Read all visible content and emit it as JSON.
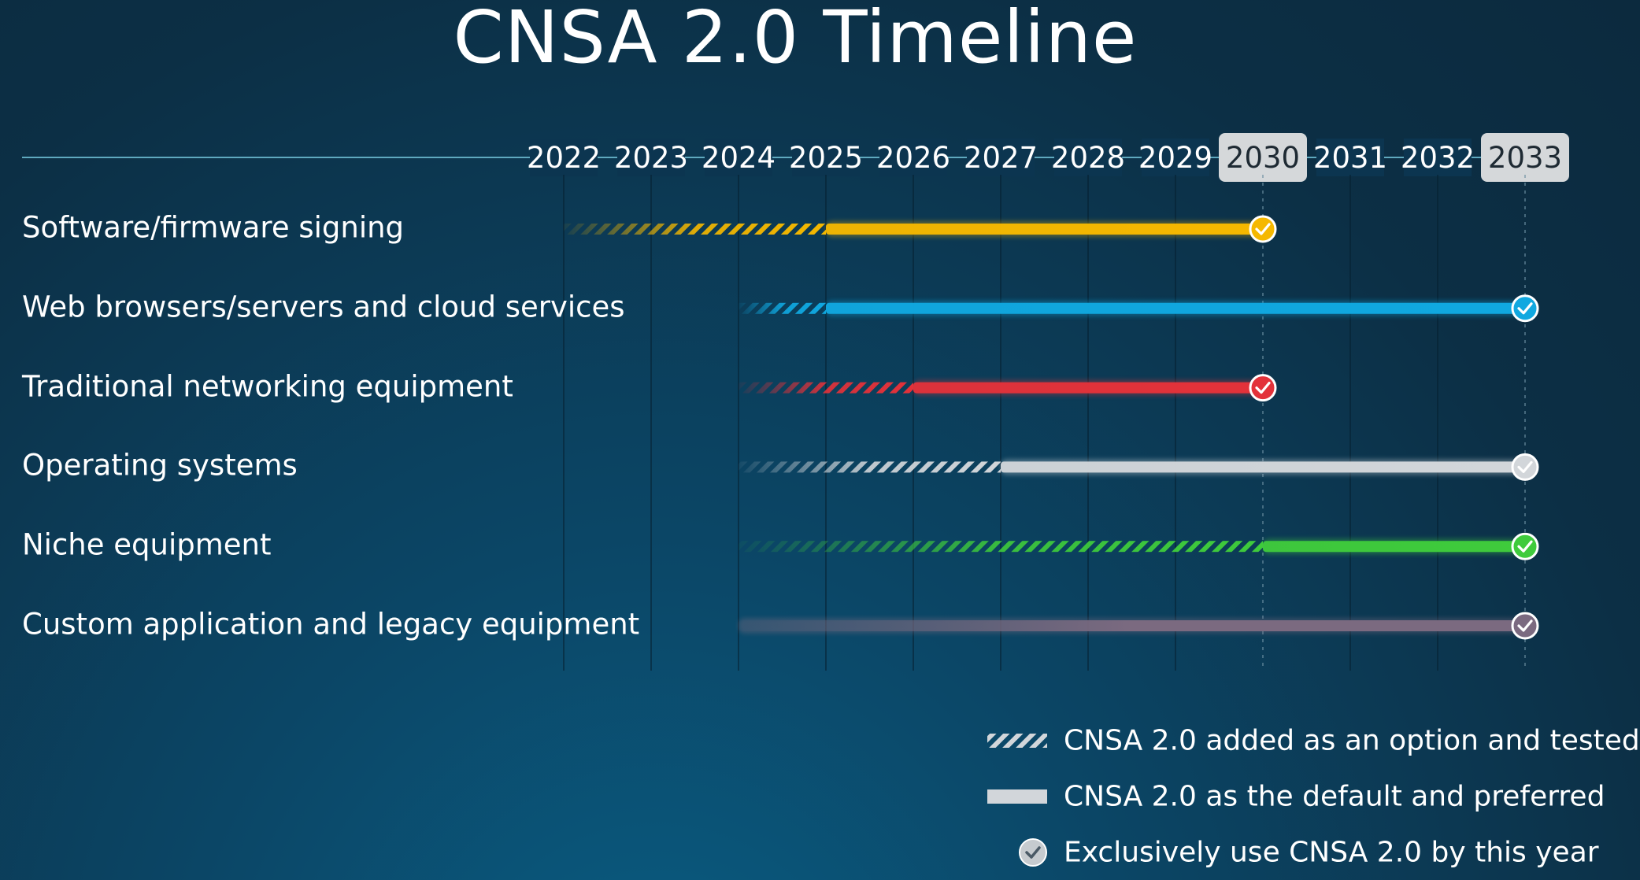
{
  "chart_data": {
    "type": "timeline",
    "title": "CNSA 2.0 Timeline",
    "years": [
      "2022",
      "2023",
      "2024",
      "2025",
      "2026",
      "2027",
      "2028",
      "2029",
      "2030",
      "2031",
      "2032",
      "2033"
    ],
    "highlighted_years": [
      "2030",
      "2033"
    ],
    "categories": [
      {
        "label": "Software/firmware signing",
        "color": "#f5b800",
        "tested_start": 2022,
        "default_start": 2025,
        "exclusive_by": 2030
      },
      {
        "label": "Web browsers/servers and cloud services",
        "color": "#10a8e0",
        "tested_start": 2024,
        "default_start": 2025,
        "exclusive_by": 2033
      },
      {
        "label": "Traditional networking equipment",
        "color": "#e3323a",
        "tested_start": 2024,
        "default_start": 2026,
        "exclusive_by": 2030
      },
      {
        "label": "Operating systems",
        "color": "#d2d6da",
        "tested_start": 2024,
        "default_start": 2027,
        "exclusive_by": 2033
      },
      {
        "label": "Niche equipment",
        "color": "#3fcb3c",
        "tested_start": 2024,
        "default_start": 2030,
        "exclusive_by": 2033
      },
      {
        "label": "Custom application and legacy equipment",
        "color": "#7b6a80",
        "tested_start": 2024,
        "default_start": 2024,
        "exclusive_by": 2033
      }
    ],
    "legend": [
      {
        "icon": "hatched-bar-icon",
        "label": "CNSA 2.0 added as an option and tested"
      },
      {
        "icon": "solid-bar-icon",
        "label": "CNSA 2.0 as the default and preferred"
      },
      {
        "icon": "check-circle-icon",
        "label": "Exclusively use CNSA 2.0 by this year"
      }
    ],
    "colors": {
      "axis_line": "#5fa9bf",
      "year_badge_bg": "#d5d8da",
      "year_badge_text": "#1e2a33"
    }
  }
}
